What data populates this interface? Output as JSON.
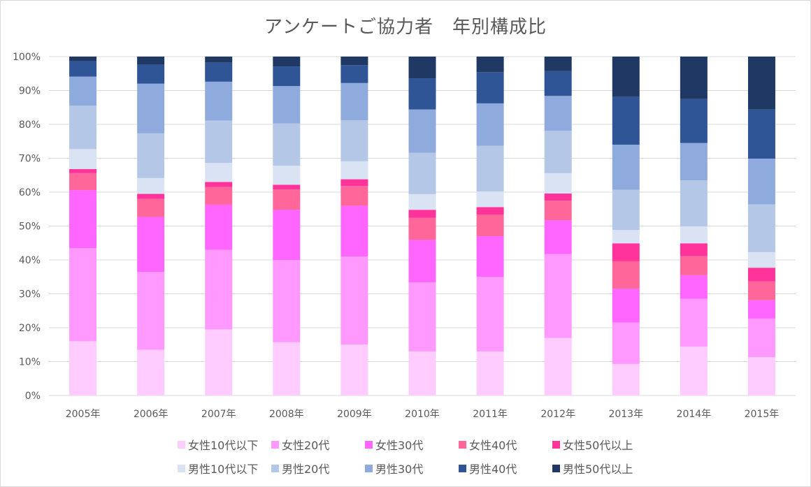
{
  "chart_data": {
    "type": "bar",
    "stacked": true,
    "percent": true,
    "title": "アンケートご協力者　年別構成比",
    "xlabel": "",
    "ylabel": "",
    "ylim": [
      0,
      100
    ],
    "y_ticks": [
      "0%",
      "10%",
      "20%",
      "30%",
      "40%",
      "50%",
      "60%",
      "70%",
      "80%",
      "90%",
      "100%"
    ],
    "grid": true,
    "legend_position": "bottom",
    "categories": [
      "2005年",
      "2006年",
      "2007年",
      "2008年",
      "2009年",
      "2010年",
      "2011年",
      "2012年",
      "2013年",
      "2014年",
      "2015年"
    ],
    "series": [
      {
        "name": "女性10代以下",
        "color": "#FFCCFF",
        "values": [
          16,
          13.5,
          19.5,
          15.7,
          15,
          13,
          13,
          17,
          9.3,
          14.4,
          11.3
        ]
      },
      {
        "name": "女性20代",
        "color": "#FF99FF",
        "values": [
          27.5,
          23,
          23.5,
          24.3,
          26,
          20.4,
          22,
          24.7,
          12.2,
          14.1,
          11.4
        ]
      },
      {
        "name": "女性30代",
        "color": "#FF66FF",
        "values": [
          17.1,
          16.3,
          13.3,
          14.8,
          15,
          12.5,
          12,
          10,
          10,
          7,
          5.4
        ]
      },
      {
        "name": "女性40代",
        "color": "#FF6699",
        "values": [
          5,
          5.3,
          5.2,
          6,
          5.8,
          6.5,
          6.4,
          5.8,
          8.1,
          5.6,
          5.6
        ]
      },
      {
        "name": "女性50代以上",
        "color": "#FF3399",
        "values": [
          1.2,
          1.5,
          1.5,
          1.4,
          2,
          2.4,
          2.2,
          2.1,
          5.3,
          3.8,
          4
        ]
      },
      {
        "name": "男性10代以下",
        "color": "#DAE3F3",
        "values": [
          5.9,
          4.7,
          5.6,
          5.6,
          5.3,
          4.6,
          4.6,
          6,
          3.9,
          5,
          4.6
        ]
      },
      {
        "name": "男性20代",
        "color": "#B4C7E7",
        "values": [
          12.8,
          13.2,
          12.5,
          12.5,
          12.1,
          12.2,
          13.5,
          12.5,
          11.9,
          13.6,
          14.1
        ]
      },
      {
        "name": "男性30代",
        "color": "#8FAADC",
        "values": [
          8.6,
          14.7,
          11.5,
          11,
          11,
          12.8,
          12.5,
          10.3,
          13.3,
          11,
          13.5
        ]
      },
      {
        "name": "男性40代",
        "color": "#2F5597",
        "values": [
          4.5,
          5.6,
          5.6,
          5.8,
          5.3,
          9.2,
          9.2,
          7.3,
          14.1,
          13,
          14.5
        ]
      },
      {
        "name": "男性50代以上",
        "color": "#1F3864",
        "values": [
          1.4,
          2.4,
          1.8,
          2.9,
          2.5,
          6.4,
          4.6,
          4.3,
          11.9,
          12.5,
          15.6
        ]
      }
    ]
  },
  "colors": {
    "grid": "#d9d9d9",
    "text": "#595959",
    "frame": "#d9d9d9"
  }
}
